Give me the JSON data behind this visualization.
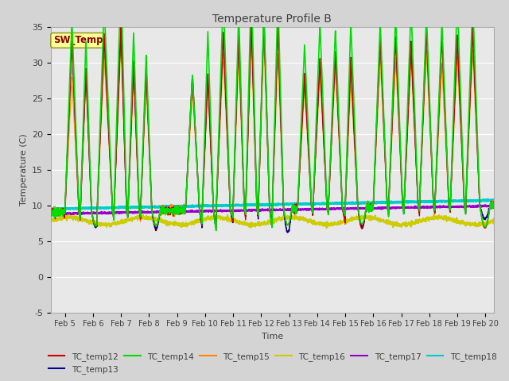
{
  "title": "Temperature Profile B",
  "xlabel": "Time",
  "ylabel": "Temperature (C)",
  "ylim": [
    -5,
    35
  ],
  "xlim_days": [
    4.5,
    20.3
  ],
  "plot_bg_color": "#e8e8e8",
  "fig_bg_color": "#d4d4d4",
  "sw_temp_label": "SW_Temp",
  "sw_temp_box_color": "#ffff99",
  "sw_temp_text_color": "#8b0000",
  "sw_temp_edge_color": "#999933",
  "series": {
    "TC_temp12": {
      "color": "#cc0000",
      "lw": 1.0
    },
    "TC_temp13": {
      "color": "#000099",
      "lw": 1.0
    },
    "TC_temp14": {
      "color": "#00dd00",
      "lw": 1.2
    },
    "TC_temp15": {
      "color": "#ff8800",
      "lw": 1.0
    },
    "TC_temp16": {
      "color": "#cccc00",
      "lw": 1.2
    },
    "TC_temp17": {
      "color": "#9900cc",
      "lw": 1.5
    },
    "TC_temp18": {
      "color": "#00cccc",
      "lw": 2.0
    }
  },
  "x_tick_labels": [
    "Feb 5",
    "Feb 6",
    "Feb 7",
    "Feb 8",
    "Feb 9",
    "Feb 10",
    "Feb 11",
    "Feb 12",
    "Feb 13",
    "Feb 14",
    "Feb 15",
    "Feb 16",
    "Feb 17",
    "Feb 18",
    "Feb 19",
    "Feb 20"
  ],
  "x_tick_positions": [
    5,
    6,
    7,
    8,
    9,
    10,
    11,
    12,
    13,
    14,
    15,
    16,
    17,
    18,
    19,
    20
  ],
  "y_ticks": [
    -5,
    0,
    5,
    10,
    15,
    20,
    25,
    30,
    35
  ]
}
